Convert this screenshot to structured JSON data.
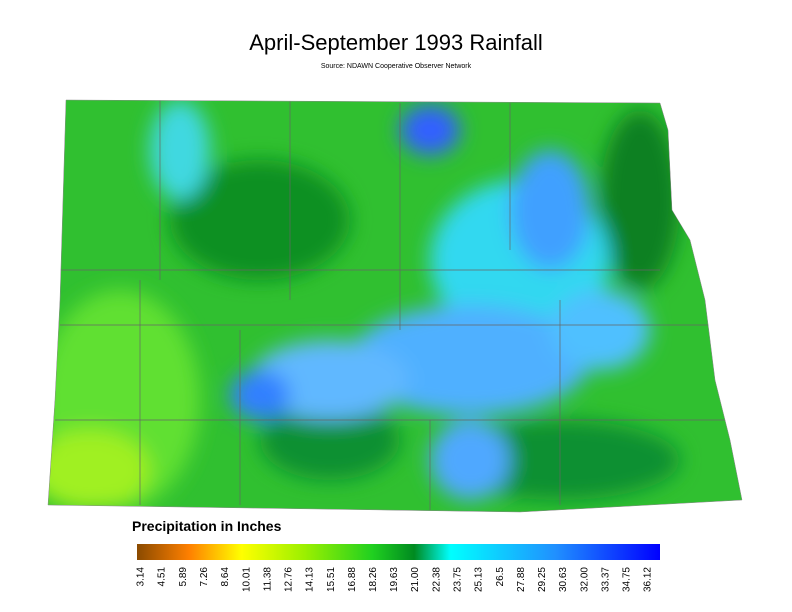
{
  "title": "April-September 1993 Rainfall",
  "source": "Source: NDAWN Cooperative Observer Network",
  "legend": {
    "title": "Precipitation in Inches",
    "ticks": [
      3.14,
      4.51,
      5.89,
      7.26,
      8.64,
      10.01,
      11.38,
      12.76,
      14.13,
      15.51,
      16.88,
      18.26,
      19.63,
      {
        "value": 21,
        "label": "21.00"
      },
      22.38,
      23.75,
      25.13,
      26.5,
      27.88,
      29.25,
      30.63,
      {
        "value": 32,
        "label": "32.00"
      },
      33.37,
      34.75,
      36.12
    ]
  }
}
